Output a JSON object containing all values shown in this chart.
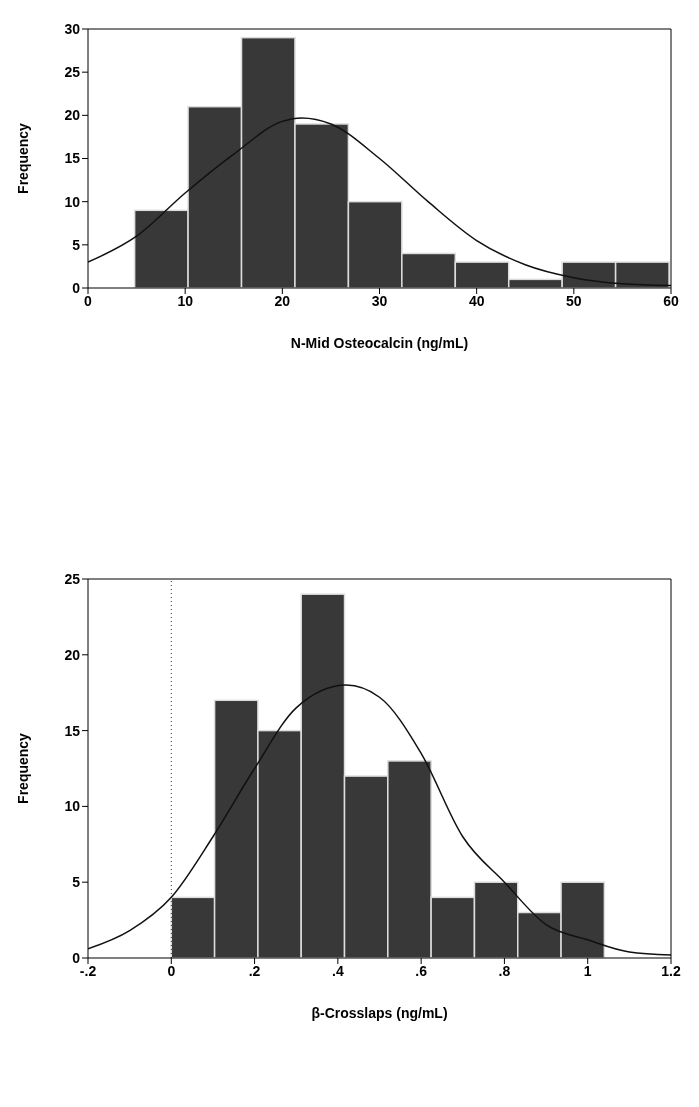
{
  "chart_data": [
    {
      "type": "histogram",
      "xlabel": "N-Mid Osteocalcin (ng/mL)",
      "ylabel": "Frequency",
      "color": "#383838",
      "bins": [
        4.8,
        10.3,
        15.8,
        21.3,
        26.8,
        32.3,
        37.8,
        43.3,
        48.8,
        54.3,
        59.8
      ],
      "values": [
        9,
        21,
        29,
        19,
        10,
        4,
        3,
        1,
        3,
        3
      ],
      "xlim": [
        0,
        60
      ],
      "xticks": [
        0,
        10,
        20,
        30,
        40,
        50,
        60
      ],
      "ylim": [
        0,
        30
      ],
      "yticks": [
        0,
        5,
        10,
        15,
        20,
        25,
        30
      ],
      "grid": false,
      "series": [
        {
          "type": "line",
          "color": "#111111",
          "x": [
            0,
            5,
            10,
            15,
            20,
            22,
            25,
            30,
            35,
            40,
            45,
            50,
            55,
            60
          ],
          "values": [
            3,
            6,
            11,
            15.5,
            19.3,
            19.7,
            19,
            15,
            10,
            5.5,
            2.7,
            1.2,
            0.5,
            0.3
          ]
        }
      ]
    },
    {
      "type": "histogram",
      "xlabel": "β-Crosslaps (ng/mL)",
      "ylabel": "Frequency",
      "color": "#383838",
      "bins": [
        0,
        0.104,
        0.208,
        0.312,
        0.416,
        0.52,
        0.624,
        0.728,
        0.832,
        0.936,
        1.04
      ],
      "values": [
        4,
        17,
        15,
        24,
        12,
        13,
        4,
        5,
        3,
        5
      ],
      "xlim": [
        -0.2,
        1.2
      ],
      "xticks": [
        {
          "value": -0.2,
          "label": "-.2"
        },
        0,
        {
          "value": 0.2,
          "label": ".2"
        },
        {
          "value": 0.4,
          "label": ".4"
        },
        {
          "value": 0.6,
          "label": ".6"
        },
        {
          "value": 0.8,
          "label": ".8"
        },
        1,
        1.2
      ],
      "ylim": [
        0,
        25
      ],
      "yticks": [
        0,
        5,
        10,
        15,
        20,
        25
      ],
      "grid": false,
      "ref_lines": [
        {
          "axis": "x",
          "value": 0,
          "line_style": "dotted",
          "color": "#333333"
        }
      ],
      "series": [
        {
          "type": "line",
          "color": "#111111",
          "x": [
            -0.2,
            -0.1,
            0,
            0.1,
            0.2,
            0.3,
            0.42,
            0.5,
            0.6,
            0.7,
            0.8,
            0.9,
            1,
            1.1,
            1.2
          ],
          "values": [
            0.6,
            1.8,
            4,
            8,
            12.5,
            16.5,
            18,
            17.2,
            13.5,
            8,
            5,
            2.2,
            1.2,
            0.4,
            0.2
          ]
        }
      ]
    }
  ]
}
